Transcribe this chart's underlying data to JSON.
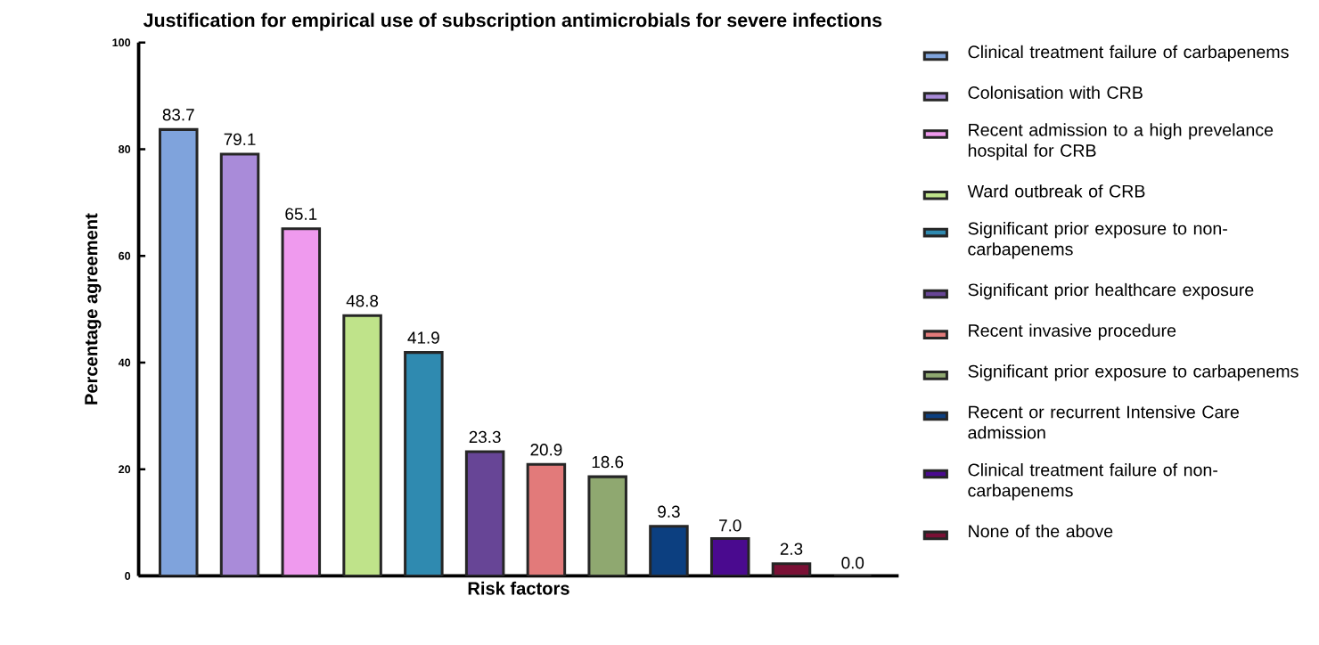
{
  "chart_data": {
    "type": "bar",
    "title": "Justification for empirical use of subscription antimicrobials for severe infections",
    "xlabel": "Risk factors",
    "ylabel": "Percentage agreement",
    "categories": [
      null,
      null,
      null,
      null,
      null,
      null,
      null,
      null,
      null,
      null,
      null,
      null
    ],
    "series": [
      {
        "name": "Clinical treatment failure of carbapenems",
        "color": "#7fa3dc",
        "values": [
          83.7,
          null,
          null,
          null,
          null,
          null,
          null,
          null,
          null,
          null,
          null,
          null
        ]
      },
      {
        "name": "Colonisation with CRB",
        "color": "#a98bd9",
        "values": [
          null,
          79.1,
          null,
          null,
          null,
          null,
          null,
          null,
          null,
          null,
          null,
          null
        ]
      },
      {
        "name": "Recent admission to a high prevelance hospital for CRB",
        "color": "#ef9aee",
        "values": [
          null,
          null,
          65.1,
          null,
          null,
          null,
          null,
          null,
          null,
          null,
          null,
          null
        ]
      },
      {
        "name": "Ward outbreak of CRB",
        "color": "#bfe38a",
        "values": [
          null,
          null,
          null,
          48.8,
          null,
          null,
          null,
          null,
          null,
          null,
          null,
          null
        ]
      },
      {
        "name": "Significant prior exposure to non-carbapenems",
        "color": "#2f8ab0",
        "values": [
          null,
          null,
          null,
          null,
          41.9,
          null,
          null,
          null,
          null,
          null,
          null,
          null
        ]
      },
      {
        "name": "Significant prior healthcare exposure",
        "color": "#674596",
        "values": [
          null,
          null,
          null,
          null,
          null,
          23.3,
          null,
          null,
          null,
          null,
          null,
          null
        ]
      },
      {
        "name": "Recent invasive procedure",
        "color": "#e27a7a",
        "values": [
          null,
          null,
          null,
          null,
          null,
          null,
          20.9,
          null,
          null,
          null,
          null,
          null
        ]
      },
      {
        "name": "Significant prior exposure to carbapenems",
        "color": "#8fa870",
        "values": [
          null,
          null,
          null,
          null,
          null,
          null,
          null,
          18.6,
          null,
          null,
          null,
          null
        ]
      },
      {
        "name": "Recent or recurrent Intensive Care admission",
        "color": "#0c3f80",
        "values": [
          null,
          null,
          null,
          null,
          null,
          null,
          null,
          null,
          9.3,
          null,
          null,
          null
        ]
      },
      {
        "name": "Clinical treatment failure of non-carbapenems",
        "color": "#4a0a8f",
        "values": [
          null,
          null,
          null,
          null,
          null,
          null,
          null,
          null,
          null,
          7.0,
          null,
          null
        ],
        "value_labels": [
          null,
          null,
          null,
          null,
          null,
          null,
          null,
          null,
          null,
          "7.0",
          null,
          null
        ]
      },
      {
        "name": "None of the above",
        "color": "#7a1035",
        "values": [
          null,
          null,
          null,
          null,
          null,
          null,
          null,
          null,
          null,
          null,
          2.3,
          null
        ]
      },
      {
        "color": "#ffffff",
        "values": [
          null,
          null,
          null,
          null,
          null,
          null,
          null,
          null,
          null,
          null,
          null,
          0.0
        ],
        "value_labels": [
          null,
          null,
          null,
          null,
          null,
          null,
          null,
          null,
          null,
          null,
          null,
          "0.0"
        ]
      }
    ],
    "ylim": [
      0,
      100
    ],
    "yticks": [
      0,
      20,
      40,
      60,
      80,
      100
    ],
    "data_labels": true,
    "legend": "right",
    "grid": false
  }
}
